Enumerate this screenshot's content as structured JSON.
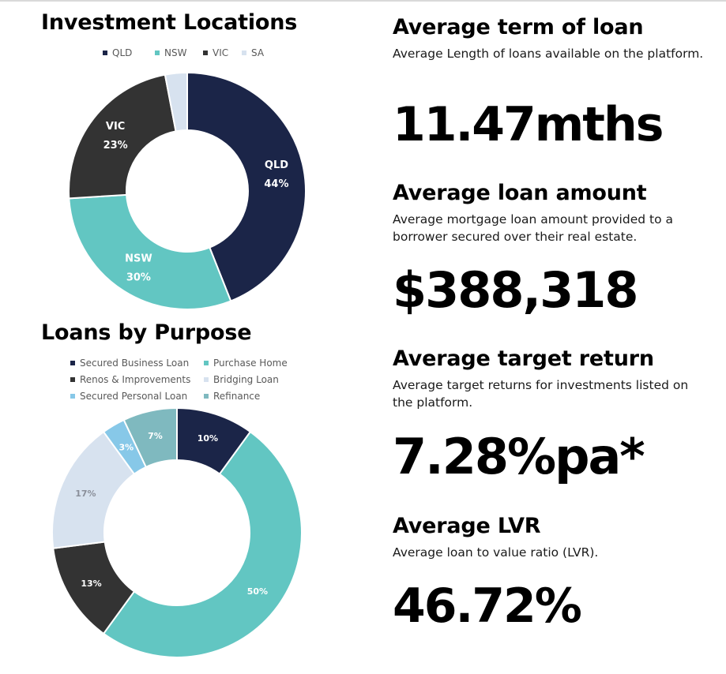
{
  "colors": {
    "navy": "#1b2548",
    "teal": "#62c6c2",
    "dark": "#333333",
    "pale": "#d7e2ef",
    "sky": "#87c8e8",
    "grayteal": "#7fb9bf"
  },
  "chart_data": [
    {
      "type": "donut",
      "title": "Investment Locations",
      "legend_position": "top",
      "series": [
        {
          "name": "QLD",
          "value": 44,
          "label": "QLD\n44%",
          "color": "#1b2548"
        },
        {
          "name": "NSW",
          "value": 30,
          "label": "NSW\n30%",
          "color": "#62c6c2"
        },
        {
          "name": "VIC",
          "value": 23,
          "label": "VIC\n23%",
          "color": "#333333"
        },
        {
          "name": "SA",
          "value": 3,
          "label": "",
          "color": "#d7e2ef"
        }
      ]
    },
    {
      "type": "donut",
      "title": "Loans by Purpose",
      "legend_position": "top",
      "series": [
        {
          "name": "Secured Business Loan",
          "value": 10,
          "label": "10%",
          "color": "#1b2548"
        },
        {
          "name": "Purchase Home",
          "value": 50,
          "label": "50%",
          "color": "#62c6c2"
        },
        {
          "name": "Renos & Improvements",
          "value": 13,
          "label": "13%",
          "color": "#333333"
        },
        {
          "name": "Bridging Loan",
          "value": 17,
          "label": "17%",
          "color": "#d7e2ef"
        },
        {
          "name": "Secured Personal Loan",
          "value": 3,
          "label": "3%",
          "color": "#87c8e8"
        },
        {
          "name": "Refinance",
          "value": 7,
          "label": "7%",
          "color": "#7fb9bf"
        }
      ]
    }
  ],
  "stats": [
    {
      "heading": "Average term of loan",
      "description": "Average Length of loans available on the platform.",
      "value": "11.47mths"
    },
    {
      "heading": "Average loan amount",
      "description": "Average mortgage loan amount provided to a borrower secured over their real estate.",
      "value": "$388,318"
    },
    {
      "heading": "Average target return",
      "description": "Average target returns for investments listed on the platform.",
      "value": "7.28%pa*"
    },
    {
      "heading": "Average LVR",
      "description": "Average loan to value ratio (LVR).",
      "value": "46.72%"
    }
  ]
}
